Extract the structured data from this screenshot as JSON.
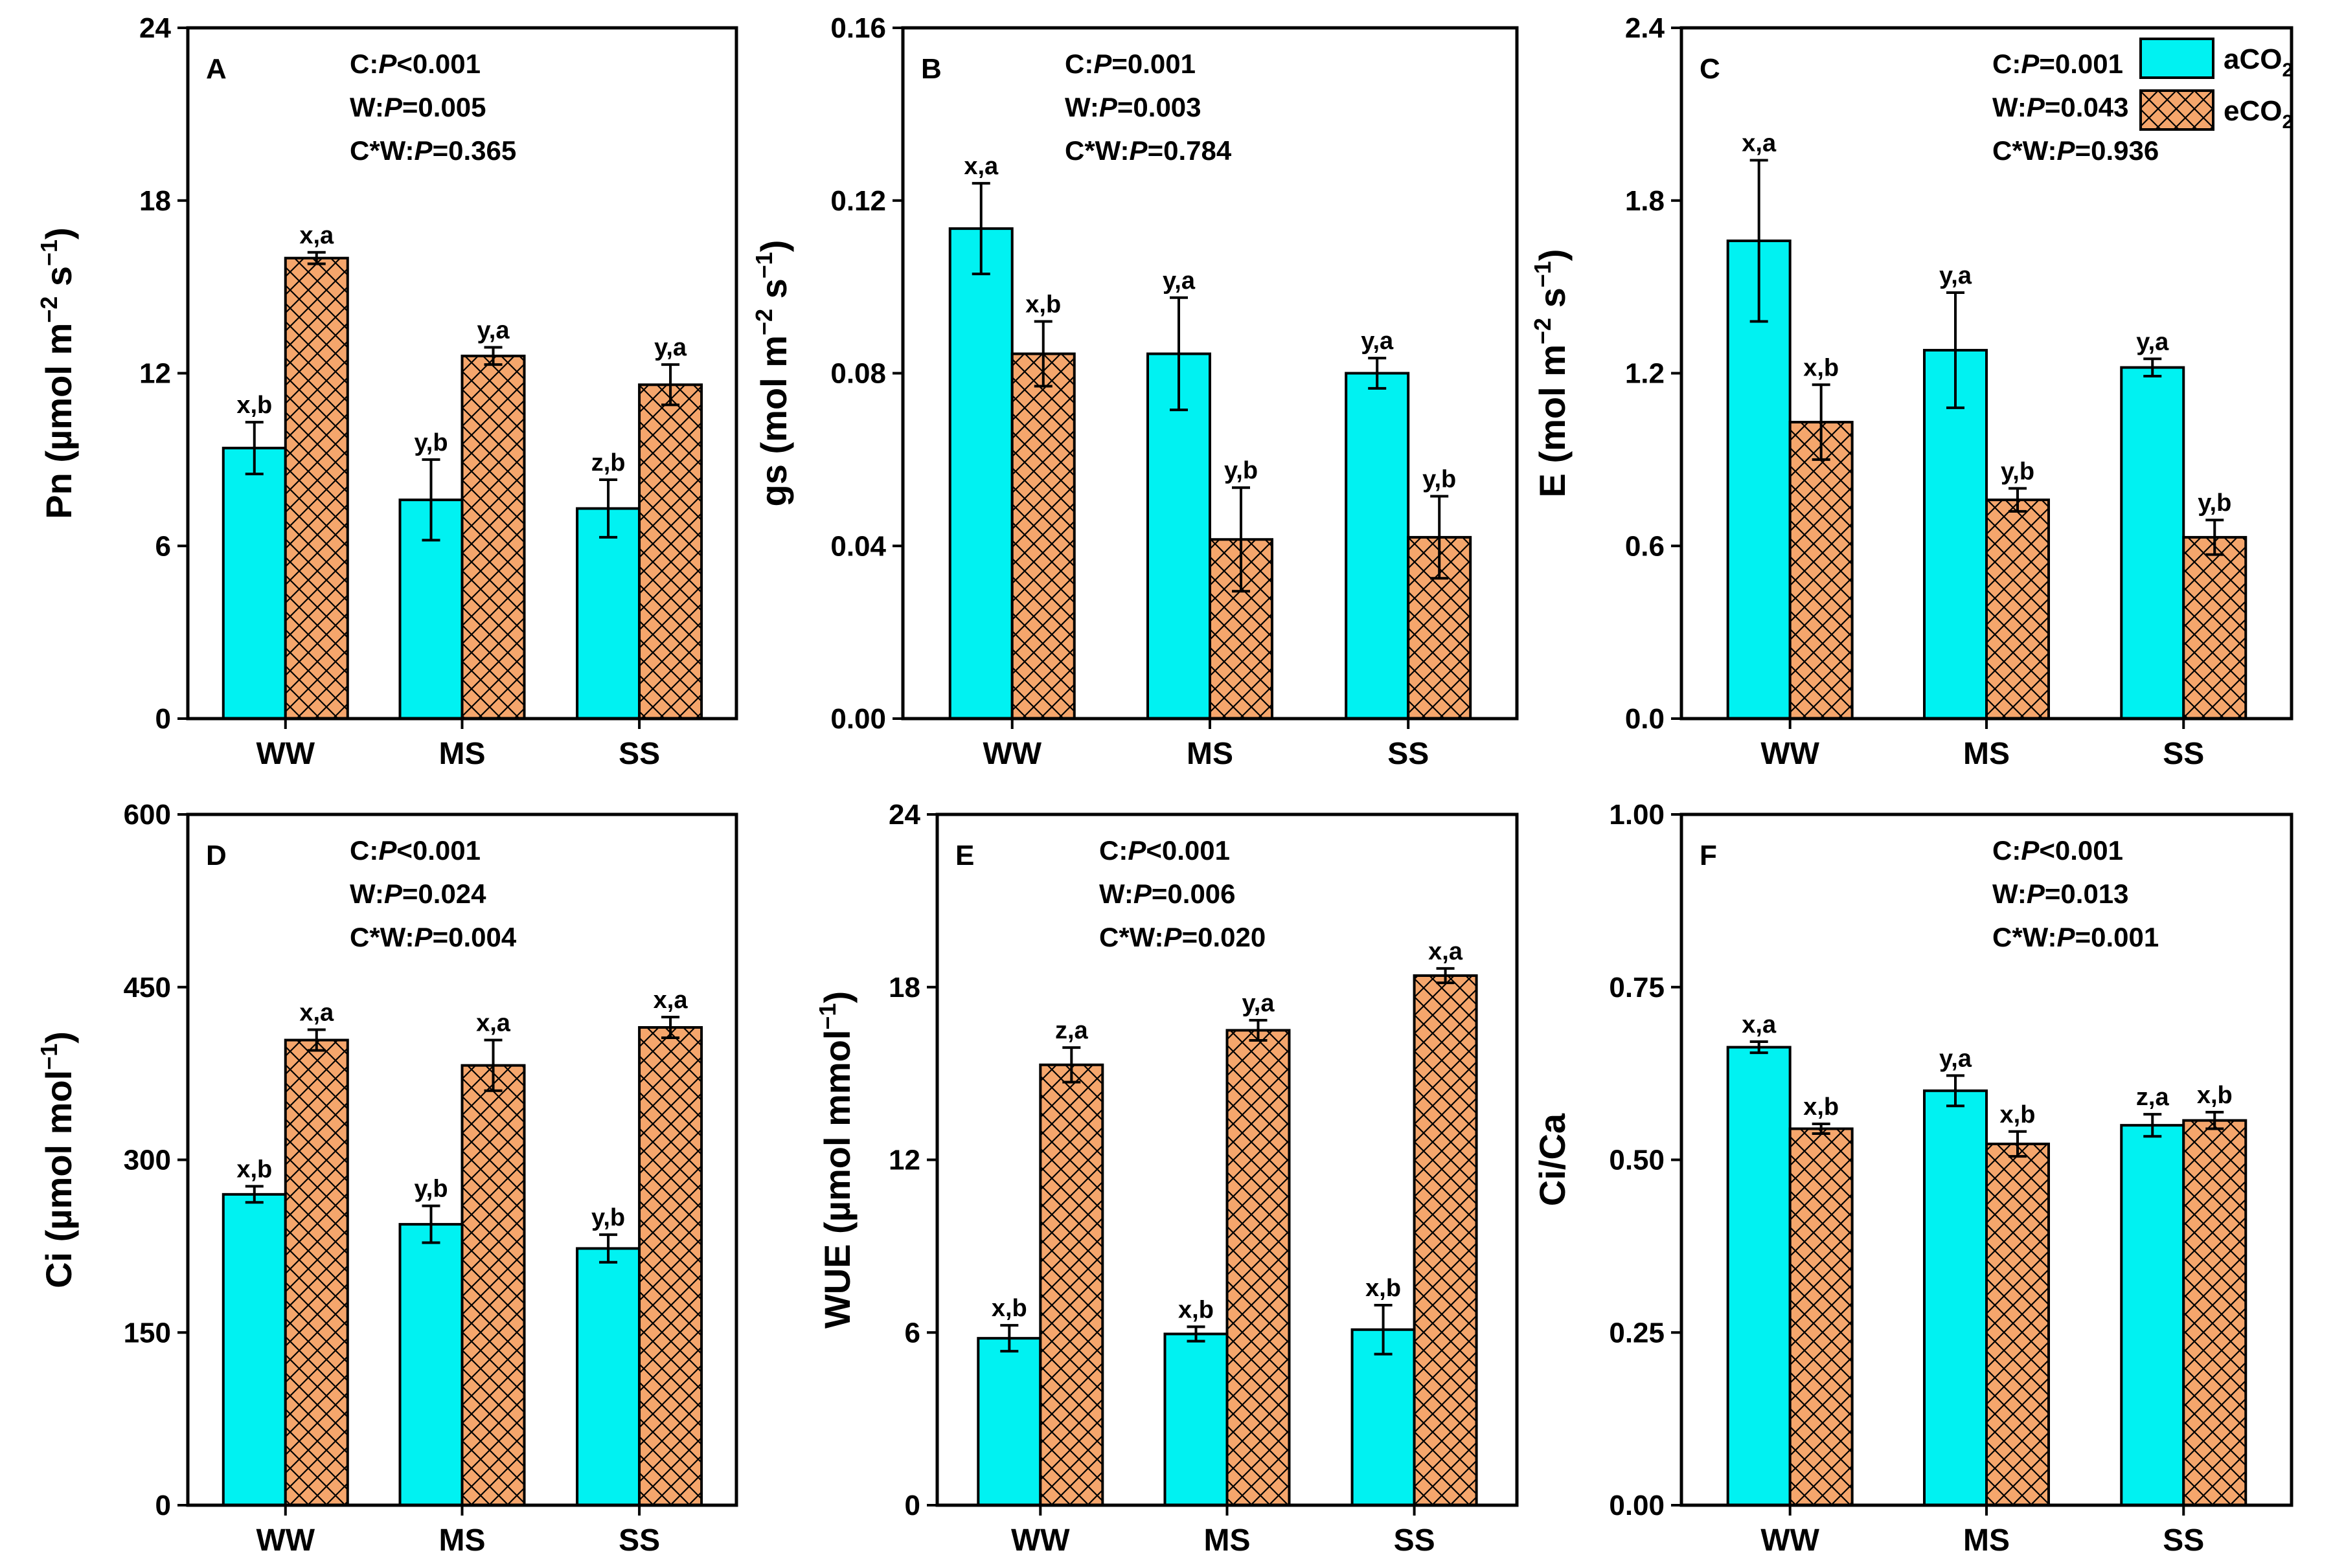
{
  "legend": [
    {
      "key": "aCO2",
      "text": "aCO",
      "sub": "2",
      "color": "#00F2F2",
      "pattern": "solid"
    },
    {
      "key": "eCO2",
      "text": "eCO",
      "sub": "2",
      "color": "#F5A66C",
      "pattern": "crosshatch"
    }
  ],
  "colors": {
    "aCO2": "#00F2F2",
    "eCO2": "#F5A66C",
    "stroke": "#000000"
  },
  "chart_data": [
    {
      "id": "A",
      "type": "bar",
      "panel_letter": "A",
      "categories": [
        "WW",
        "MS",
        "SS"
      ],
      "ylabel": {
        "pre": "Pn (µmol m",
        "sup1": "−2",
        "mid": " s",
        "sup2": "−1",
        "post": ")"
      },
      "ylim": [
        0,
        24
      ],
      "yticks": [
        "0",
        "6",
        "12",
        "18",
        "24"
      ],
      "stats": [
        {
          "label": "C:",
          "p": "P",
          "rest": "<0.001"
        },
        {
          "label": "W:",
          "p": "P",
          "rest": "=0.005"
        },
        {
          "label": "C*W:",
          "p": "P",
          "rest": "=0.365"
        }
      ],
      "series": [
        {
          "name": "aCO2",
          "values": [
            9.4,
            7.6,
            7.3
          ],
          "errors": [
            0.9,
            1.4,
            1.0
          ],
          "labels": [
            "x,b",
            "y,b",
            "z,b"
          ]
        },
        {
          "name": "eCO2",
          "values": [
            16.0,
            12.6,
            11.6
          ],
          "errors": [
            0.2,
            0.3,
            0.7
          ],
          "labels": [
            "x,a",
            "y,a",
            "y,a"
          ]
        }
      ]
    },
    {
      "id": "B",
      "type": "bar",
      "panel_letter": "B",
      "categories": [
        "WW",
        "MS",
        "SS"
      ],
      "ylabel": {
        "pre": "gs (mol m",
        "sup1": "−2",
        "mid": " s",
        "sup2": "−1",
        "post": ")"
      },
      "ylim": [
        0,
        0.16
      ],
      "yticks": [
        "0.00",
        "0.04",
        "0.08",
        "0.12",
        "0.16"
      ],
      "stats": [
        {
          "label": "C:",
          "p": "P",
          "rest": "=0.001"
        },
        {
          "label": "W:",
          "p": "P",
          "rest": "=0.003"
        },
        {
          "label": "C*W:",
          "p": "P",
          "rest": "=0.784"
        }
      ],
      "series": [
        {
          "name": "aCO2",
          "values": [
            0.1135,
            0.0845,
            0.08
          ],
          "errors": [
            0.0105,
            0.013,
            0.0035
          ],
          "labels": [
            "x,a",
            "y,a",
            "y,a"
          ]
        },
        {
          "name": "eCO2",
          "values": [
            0.0845,
            0.0415,
            0.042
          ],
          "errors": [
            0.0075,
            0.012,
            0.0095
          ],
          "labels": [
            "x,b",
            "y,b",
            "y,b"
          ]
        }
      ]
    },
    {
      "id": "C",
      "type": "bar",
      "panel_letter": "C",
      "categories": [
        "WW",
        "MS",
        "SS"
      ],
      "ylabel": {
        "pre": "E (mol m",
        "sup1": "−2",
        "mid": " s",
        "sup2": "−1",
        "post": ")"
      },
      "ylim": [
        0,
        2.4
      ],
      "yticks": [
        "0.0",
        "0.6",
        "1.2",
        "1.8",
        "2.4"
      ],
      "stats": [
        {
          "label": "C:",
          "p": "P",
          "rest": "=0.001"
        },
        {
          "label": "W:",
          "p": "P",
          "rest": "=0.043"
        },
        {
          "label": "C*W:",
          "p": "P",
          "rest": "=0.936"
        }
      ],
      "series": [
        {
          "name": "aCO2",
          "values": [
            1.66,
            1.28,
            1.22
          ],
          "errors": [
            0.28,
            0.2,
            0.03
          ],
          "labels": [
            "x,a",
            "y,a",
            "y,a"
          ]
        },
        {
          "name": "eCO2",
          "values": [
            1.03,
            0.76,
            0.63
          ],
          "errors": [
            0.13,
            0.04,
            0.06
          ],
          "labels": [
            "x,b",
            "y,b",
            "y,b"
          ]
        }
      ]
    },
    {
      "id": "D",
      "type": "bar",
      "panel_letter": "D",
      "categories": [
        "WW",
        "MS",
        "SS"
      ],
      "ylabel": {
        "pre": "Ci (µmol mol",
        "sup1": "−1",
        "mid": "",
        "sup2": "",
        "post": ")"
      },
      "ylim": [
        0,
        600
      ],
      "yticks": [
        "0",
        "150",
        "300",
        "450",
        "600"
      ],
      "stats": [
        {
          "label": "C:",
          "p": "P",
          "rest": "<0.001"
        },
        {
          "label": "W:",
          "p": "P",
          "rest": "=0.024"
        },
        {
          "label": "C*W:",
          "p": "P",
          "rest": "=0.004"
        }
      ],
      "series": [
        {
          "name": "aCO2",
          "values": [
            270,
            244,
            223
          ],
          "errors": [
            7,
            16,
            12
          ],
          "labels": [
            "x,b",
            "y,b",
            "y,b"
          ]
        },
        {
          "name": "eCO2",
          "values": [
            404,
            382,
            415
          ],
          "errors": [
            9,
            22,
            9
          ],
          "labels": [
            "x,a",
            "x,a",
            "x,a"
          ]
        }
      ]
    },
    {
      "id": "E",
      "type": "bar",
      "panel_letter": "E",
      "categories": [
        "WW",
        "MS",
        "SS"
      ],
      "ylabel": {
        "pre": "WUE (µmol mmol",
        "sup1": "−1",
        "mid": "",
        "sup2": "",
        "post": ")"
      },
      "ylim": [
        0,
        24
      ],
      "yticks": [
        "0",
        "6",
        "12",
        "18",
        "24"
      ],
      "stats": [
        {
          "label": "C:",
          "p": "P",
          "rest": "<0.001"
        },
        {
          "label": "W:",
          "p": "P",
          "rest": "=0.006"
        },
        {
          "label": "C*W:",
          "p": "P",
          "rest": "=0.020"
        }
      ],
      "series": [
        {
          "name": "aCO2",
          "values": [
            5.8,
            5.95,
            6.1
          ],
          "errors": [
            0.45,
            0.25,
            0.85
          ],
          "labels": [
            "x,b",
            "x,b",
            "x,b"
          ]
        },
        {
          "name": "eCO2",
          "values": [
            15.3,
            16.5,
            18.4
          ],
          "errors": [
            0.6,
            0.35,
            0.25
          ],
          "labels": [
            "z,a",
            "y,a",
            "x,a"
          ]
        }
      ]
    },
    {
      "id": "F",
      "type": "bar",
      "panel_letter": "F",
      "categories": [
        "WW",
        "MS",
        "SS"
      ],
      "ylabel": {
        "pre": "Ci/Ca",
        "sup1": "",
        "mid": "",
        "sup2": "",
        "post": ""
      },
      "ylim": [
        0,
        1.0
      ],
      "yticks": [
        "0.00",
        "0.25",
        "0.50",
        "0.75",
        "1.00"
      ],
      "stats": [
        {
          "label": "C:",
          "p": "P",
          "rest": "<0.001"
        },
        {
          "label": "W:",
          "p": "P",
          "rest": "=0.013"
        },
        {
          "label": "C*W:",
          "p": "P",
          "rest": "=0.001"
        }
      ],
      "series": [
        {
          "name": "aCO2",
          "values": [
            0.663,
            0.6,
            0.55
          ],
          "errors": [
            0.008,
            0.022,
            0.016
          ],
          "labels": [
            "x,a",
            "y,a",
            "z,a"
          ]
        },
        {
          "name": "eCO2",
          "values": [
            0.545,
            0.523,
            0.557
          ],
          "errors": [
            0.007,
            0.018,
            0.012
          ],
          "labels": [
            "x,b",
            "x,b",
            "x,b"
          ]
        }
      ]
    }
  ]
}
